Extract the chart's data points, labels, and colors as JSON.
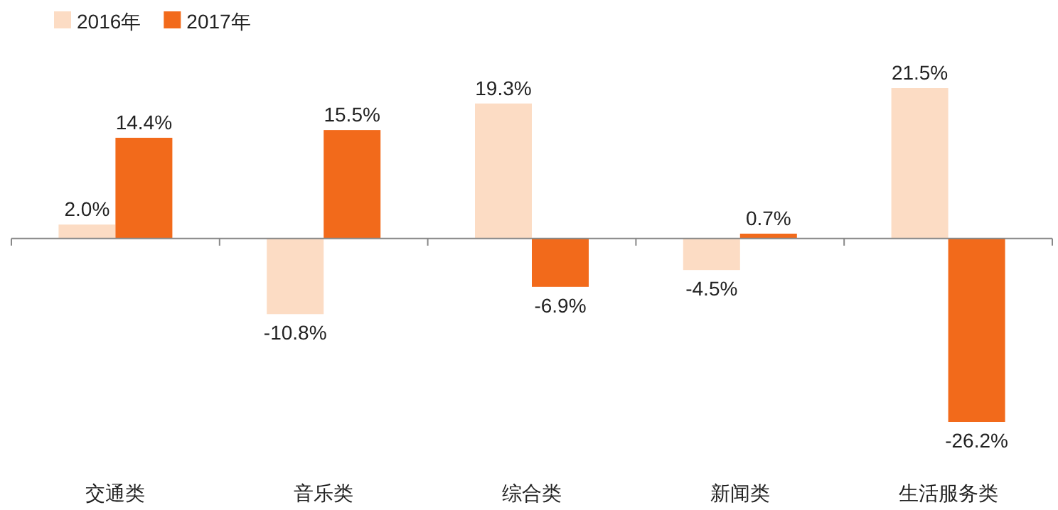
{
  "chart_data": {
    "type": "bar",
    "categories": [
      "交通类",
      "音乐类",
      "综合类",
      "新闻类",
      "生活服务类"
    ],
    "series": [
      {
        "name": "2016年",
        "color": "#fcdcc4",
        "values": [
          2.0,
          -10.8,
          19.3,
          -4.5,
          21.5
        ],
        "value_labels": [
          "2.0%",
          "-10.8%",
          "19.3%",
          "-4.5%",
          "21.5%"
        ]
      },
      {
        "name": "2017年",
        "color": "#f26a1b",
        "values": [
          14.4,
          15.5,
          -6.9,
          0.7,
          -26.2
        ],
        "value_labels": [
          "14.4%",
          "15.5%",
          "-6.9%",
          "0.7%",
          "-26.2%"
        ]
      }
    ],
    "legend": "top left"
  }
}
